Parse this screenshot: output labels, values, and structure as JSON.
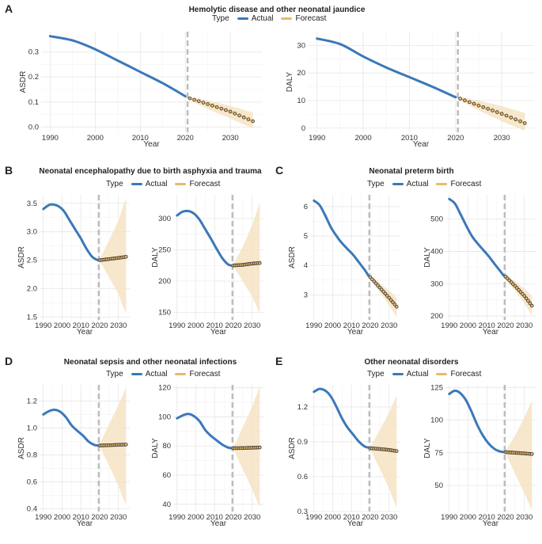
{
  "colors": {
    "actual": "#3b78b8",
    "forecast": "#e8b96a",
    "band": "#f6e3c4",
    "marker_edge": "#333333",
    "vline": "#bdbdbd",
    "grid": "#e6e6e6"
  },
  "legend": {
    "type_label": "Type",
    "actual": "Actual",
    "forecast": "Forecast"
  },
  "panels": [
    {
      "id": "A",
      "title": "Hemolytic disease and other neonatal jaundice"
    },
    {
      "id": "B",
      "title": "Neonatal encephalopathy due to birth asphyxia and trauma"
    },
    {
      "id": "C",
      "title": "Neonatal preterm birth"
    },
    {
      "id": "D",
      "title": "Neonatal sepsis and other neonatal infections"
    },
    {
      "id": "E",
      "title": "Other neonatal disorders"
    }
  ],
  "chart_data": [
    {
      "panel": "A",
      "type": "line",
      "xlabel": "Year",
      "ylabel": "ASDR",
      "xlim": [
        1988,
        2037
      ],
      "ylim": [
        -0.02,
        0.38
      ],
      "xticks": [
        1990,
        2000,
        2010,
        2020,
        2030
      ],
      "yticks": [
        0.0,
        0.1,
        0.2,
        0.3
      ],
      "ytick_labels": [
        "0.0",
        "0.1",
        "0.2",
        "0.3"
      ],
      "vline_x": 2020.5,
      "actual": [
        [
          1990,
          0.362
        ],
        [
          1995,
          0.345
        ],
        [
          2000,
          0.31
        ],
        [
          2005,
          0.265
        ],
        [
          2010,
          0.22
        ],
        [
          2015,
          0.175
        ],
        [
          2020,
          0.123
        ]
      ],
      "forecast": [
        [
          2021,
          0.115
        ],
        [
          2025,
          0.092
        ],
        [
          2030,
          0.062
        ],
        [
          2035,
          0.024
        ]
      ],
      "band_lower": [
        [
          2021,
          0.108
        ],
        [
          2025,
          0.072
        ],
        [
          2030,
          0.035
        ],
        [
          2035,
          -0.005
        ]
      ],
      "band_upper": [
        [
          2021,
          0.12
        ],
        [
          2025,
          0.107
        ],
        [
          2030,
          0.085
        ],
        [
          2035,
          0.058
        ]
      ]
    },
    {
      "panel": "A",
      "type": "line",
      "xlabel": "Year",
      "ylabel": "DALY",
      "xlim": [
        1988,
        2037
      ],
      "ylim": [
        -1.5,
        35
      ],
      "xticks": [
        1990,
        2000,
        2010,
        2020,
        2030
      ],
      "yticks": [
        0,
        10,
        20,
        30
      ],
      "ytick_labels": [
        "0",
        "10",
        "20",
        "30"
      ],
      "vline_x": 2020.5,
      "actual": [
        [
          1990,
          32.5
        ],
        [
          1995,
          30.5
        ],
        [
          2000,
          26
        ],
        [
          2005,
          22
        ],
        [
          2010,
          18.5
        ],
        [
          2015,
          15
        ],
        [
          2020,
          11.2
        ]
      ],
      "forecast": [
        [
          2021,
          10.7
        ],
        [
          2025,
          8.2
        ],
        [
          2030,
          5.2
        ],
        [
          2035,
          1.8
        ]
      ],
      "band_lower": [
        [
          2021,
          10.0
        ],
        [
          2025,
          6.4
        ],
        [
          2030,
          2.5
        ],
        [
          2035,
          -1.0
        ]
      ],
      "band_upper": [
        [
          2021,
          11.3
        ],
        [
          2025,
          10.0
        ],
        [
          2030,
          8.0
        ],
        [
          2035,
          5.5
        ]
      ]
    },
    {
      "panel": "B",
      "type": "line",
      "xlabel": "Year",
      "ylabel": "ASDR",
      "xlim": [
        1988,
        2036
      ],
      "ylim": [
        1.45,
        3.65
      ],
      "xticks": [
        1990,
        2000,
        2010,
        2020,
        2030
      ],
      "yticks": [
        1.5,
        2.0,
        2.5,
        3.0,
        3.5
      ],
      "ytick_labels": [
        "1.5",
        "2.0",
        "2.5",
        "3.0",
        "3.5"
      ],
      "vline_x": 2019.5,
      "actual": [
        [
          1990,
          3.4
        ],
        [
          1993,
          3.47
        ],
        [
          1995,
          3.48
        ],
        [
          1998,
          3.45
        ],
        [
          2001,
          3.36
        ],
        [
          2004,
          3.2
        ],
        [
          2007,
          3.04
        ],
        [
          2010,
          2.88
        ],
        [
          2013,
          2.7
        ],
        [
          2016,
          2.56
        ],
        [
          2019,
          2.5
        ]
      ],
      "forecast": [
        [
          2020,
          2.5
        ],
        [
          2025,
          2.52
        ],
        [
          2030,
          2.54
        ],
        [
          2034,
          2.56
        ]
      ],
      "band_lower": [
        [
          2020,
          2.48
        ],
        [
          2025,
          2.2
        ],
        [
          2030,
          1.9
        ],
        [
          2034,
          1.55
        ]
      ],
      "band_upper": [
        [
          2020,
          2.52
        ],
        [
          2025,
          2.85
        ],
        [
          2030,
          3.2
        ],
        [
          2034,
          3.6
        ]
      ]
    },
    {
      "panel": "B",
      "type": "line",
      "xlabel": "Year",
      "ylabel": "DALY",
      "xlim": [
        1988,
        2036
      ],
      "ylim": [
        138,
        338
      ],
      "xticks": [
        1990,
        2000,
        2010,
        2020,
        2030
      ],
      "yticks": [
        150,
        200,
        250,
        300
      ],
      "ytick_labels": [
        "150",
        "200",
        "250",
        "300"
      ],
      "vline_x": 2019.5,
      "actual": [
        [
          1990,
          305
        ],
        [
          1993,
          311
        ],
        [
          1996,
          312
        ],
        [
          1999,
          308
        ],
        [
          2002,
          298
        ],
        [
          2005,
          283
        ],
        [
          2008,
          268
        ],
        [
          2011,
          252
        ],
        [
          2014,
          237
        ],
        [
          2017,
          227
        ],
        [
          2019,
          225
        ]
      ],
      "forecast": [
        [
          2020,
          225
        ],
        [
          2025,
          226
        ],
        [
          2030,
          228
        ],
        [
          2034,
          229
        ]
      ],
      "band_lower": [
        [
          2020,
          223
        ],
        [
          2025,
          200
        ],
        [
          2030,
          175
        ],
        [
          2034,
          148
        ]
      ],
      "band_upper": [
        [
          2020,
          227
        ],
        [
          2025,
          255
        ],
        [
          2030,
          290
        ],
        [
          2034,
          325
        ]
      ]
    },
    {
      "panel": "C",
      "type": "line",
      "xlabel": "Year",
      "ylabel": "ASDR",
      "xlim": [
        1988,
        2036
      ],
      "ylim": [
        2.15,
        6.4
      ],
      "xticks": [
        1990,
        2000,
        2010,
        2020,
        2030
      ],
      "yticks": [
        3,
        4,
        5,
        6
      ],
      "ytick_labels": [
        "3",
        "4",
        "5",
        "6"
      ],
      "vline_x": 2019.5,
      "actual": [
        [
          1990,
          6.2
        ],
        [
          1993,
          6.05
        ],
        [
          1996,
          5.7
        ],
        [
          1999,
          5.3
        ],
        [
          2002,
          5.0
        ],
        [
          2005,
          4.75
        ],
        [
          2008,
          4.55
        ],
        [
          2011,
          4.35
        ],
        [
          2014,
          4.1
        ],
        [
          2017,
          3.85
        ],
        [
          2019,
          3.65
        ]
      ],
      "forecast": [
        [
          2020,
          3.6
        ],
        [
          2025,
          3.25
        ],
        [
          2030,
          2.9
        ],
        [
          2034,
          2.6
        ]
      ],
      "band_lower": [
        [
          2020,
          3.55
        ],
        [
          2025,
          3.1
        ],
        [
          2030,
          2.65
        ],
        [
          2034,
          2.25
        ]
      ],
      "band_upper": [
        [
          2020,
          3.65
        ],
        [
          2025,
          3.4
        ],
        [
          2030,
          3.15
        ],
        [
          2034,
          2.9
        ]
      ]
    },
    {
      "panel": "C",
      "type": "line",
      "xlabel": "Year",
      "ylabel": "DALY",
      "xlim": [
        1988,
        2036
      ],
      "ylim": [
        188,
        575
      ],
      "xticks": [
        1990,
        2000,
        2010,
        2020,
        2030
      ],
      "yticks": [
        200,
        300,
        400,
        500
      ],
      "ytick_labels": [
        "200",
        "300",
        "400",
        "500"
      ],
      "vline_x": 2019.5,
      "actual": [
        [
          1990,
          562
        ],
        [
          1993,
          548
        ],
        [
          1996,
          515
        ],
        [
          1999,
          480
        ],
        [
          2002,
          448
        ],
        [
          2005,
          425
        ],
        [
          2008,
          405
        ],
        [
          2011,
          385
        ],
        [
          2014,
          362
        ],
        [
          2017,
          340
        ],
        [
          2019,
          325
        ]
      ],
      "forecast": [
        [
          2020,
          322
        ],
        [
          2025,
          293
        ],
        [
          2030,
          262
        ],
        [
          2034,
          232
        ]
      ],
      "band_lower": [
        [
          2020,
          316
        ],
        [
          2025,
          278
        ],
        [
          2030,
          240
        ],
        [
          2034,
          200
        ]
      ],
      "band_upper": [
        [
          2020,
          328
        ],
        [
          2025,
          308
        ],
        [
          2030,
          285
        ],
        [
          2034,
          262
        ]
      ]
    },
    {
      "panel": "D",
      "type": "line",
      "xlabel": "Year",
      "ylabel": "ASDR",
      "xlim": [
        1988,
        2036
      ],
      "ylim": [
        0.38,
        1.32
      ],
      "xticks": [
        1990,
        2000,
        2010,
        2020,
        2030
      ],
      "yticks": [
        0.4,
        0.6,
        0.8,
        1.0,
        1.2
      ],
      "ytick_labels": [
        "0.4",
        "0.6",
        "0.8",
        "1.0",
        "1.2"
      ],
      "vline_x": 2019.5,
      "actual": [
        [
          1990,
          1.1
        ],
        [
          1993,
          1.125
        ],
        [
          1996,
          1.135
        ],
        [
          1999,
          1.12
        ],
        [
          2002,
          1.08
        ],
        [
          2005,
          1.02
        ],
        [
          2008,
          0.98
        ],
        [
          2011,
          0.945
        ],
        [
          2014,
          0.9
        ],
        [
          2017,
          0.875
        ],
        [
          2019,
          0.87
        ]
      ],
      "forecast": [
        [
          2020,
          0.87
        ],
        [
          2025,
          0.872
        ],
        [
          2030,
          0.875
        ],
        [
          2034,
          0.877
        ]
      ],
      "band_lower": [
        [
          2020,
          0.86
        ],
        [
          2025,
          0.72
        ],
        [
          2030,
          0.57
        ],
        [
          2034,
          0.42
        ]
      ],
      "band_upper": [
        [
          2020,
          0.88
        ],
        [
          2025,
          1.03
        ],
        [
          2030,
          1.17
        ],
        [
          2034,
          1.3
        ]
      ]
    },
    {
      "panel": "D",
      "type": "line",
      "xlabel": "Year",
      "ylabel": "DALY",
      "xlim": [
        1988,
        2036
      ],
      "ylim": [
        35,
        122
      ],
      "xticks": [
        1990,
        2000,
        2010,
        2020,
        2030
      ],
      "yticks": [
        40,
        60,
        80,
        100,
        120
      ],
      "ytick_labels": [
        "40",
        "60",
        "80",
        "100",
        "120"
      ],
      "vline_x": 2019.5,
      "actual": [
        [
          1990,
          99
        ],
        [
          1993,
          101
        ],
        [
          1996,
          102
        ],
        [
          1999,
          100.5
        ],
        [
          2002,
          97
        ],
        [
          2005,
          91
        ],
        [
          2008,
          87
        ],
        [
          2011,
          84
        ],
        [
          2014,
          81
        ],
        [
          2017,
          79
        ],
        [
          2019,
          78.5
        ]
      ],
      "forecast": [
        [
          2020,
          78.5
        ],
        [
          2025,
          78.6
        ],
        [
          2030,
          78.8
        ],
        [
          2034,
          79
        ]
      ],
      "band_lower": [
        [
          2020,
          78
        ],
        [
          2025,
          64
        ],
        [
          2030,
          50
        ],
        [
          2034,
          38
        ]
      ],
      "band_upper": [
        [
          2020,
          79
        ],
        [
          2025,
          93
        ],
        [
          2030,
          107
        ],
        [
          2034,
          121
        ]
      ]
    },
    {
      "panel": "E",
      "type": "line",
      "xlabel": "Year",
      "ylabel": "ASDR",
      "xlim": [
        1988,
        2036
      ],
      "ylim": [
        0.3,
        1.39
      ],
      "xticks": [
        1990,
        2000,
        2010,
        2020,
        2030
      ],
      "yticks": [
        0.3,
        0.6,
        0.9,
        1.2
      ],
      "ytick_labels": [
        "0.3",
        "0.6",
        "0.9",
        "1.2"
      ],
      "vline_x": 2019.5,
      "actual": [
        [
          1990,
          1.33
        ],
        [
          1993,
          1.355
        ],
        [
          1996,
          1.34
        ],
        [
          1999,
          1.29
        ],
        [
          2002,
          1.2
        ],
        [
          2005,
          1.1
        ],
        [
          2008,
          1.02
        ],
        [
          2011,
          0.96
        ],
        [
          2014,
          0.9
        ],
        [
          2017,
          0.86
        ],
        [
          2019,
          0.85
        ]
      ],
      "forecast": [
        [
          2020,
          0.845
        ],
        [
          2025,
          0.838
        ],
        [
          2030,
          0.83
        ],
        [
          2034,
          0.82
        ]
      ],
      "band_lower": [
        [
          2020,
          0.835
        ],
        [
          2025,
          0.67
        ],
        [
          2030,
          0.5
        ],
        [
          2034,
          0.33
        ]
      ],
      "band_upper": [
        [
          2020,
          0.855
        ],
        [
          2025,
          1.0
        ],
        [
          2030,
          1.15
        ],
        [
          2034,
          1.3
        ]
      ]
    },
    {
      "panel": "E",
      "type": "line",
      "xlabel": "Year",
      "ylabel": "DALY",
      "xlim": [
        1988,
        2036
      ],
      "ylim": [
        30,
        127
      ],
      "xticks": [
        1990,
        2000,
        2010,
        2020,
        2030
      ],
      "yticks": [
        50,
        75,
        100,
        125
      ],
      "ytick_labels": [
        "50",
        "75",
        "100",
        "125"
      ],
      "vline_x": 2019.5,
      "actual": [
        [
          1990,
          120
        ],
        [
          1993,
          122.5
        ],
        [
          1996,
          120.5
        ],
        [
          1999,
          115
        ],
        [
          2002,
          106
        ],
        [
          2005,
          96
        ],
        [
          2008,
          88
        ],
        [
          2011,
          82
        ],
        [
          2014,
          78
        ],
        [
          2017,
          76
        ],
        [
          2019,
          75.5
        ]
      ],
      "forecast": [
        [
          2020,
          75.5
        ],
        [
          2025,
          75
        ],
        [
          2030,
          74.5
        ],
        [
          2034,
          74
        ]
      ],
      "band_lower": [
        [
          2020,
          74.5
        ],
        [
          2025,
          59
        ],
        [
          2030,
          44
        ],
        [
          2034,
          31
        ]
      ],
      "band_upper": [
        [
          2020,
          76.5
        ],
        [
          2025,
          88
        ],
        [
          2030,
          102
        ],
        [
          2034,
          115
        ]
      ]
    }
  ]
}
